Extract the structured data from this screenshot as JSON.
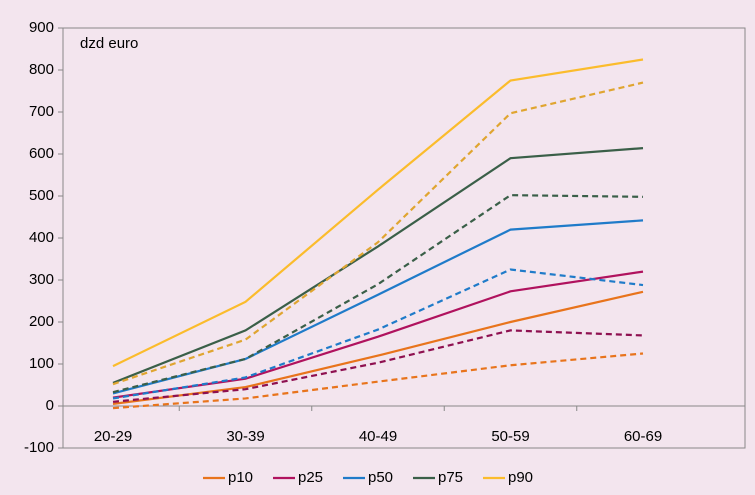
{
  "chart_data": {
    "type": "line",
    "annotation": "dzd euro",
    "categories": [
      "20-29",
      "30-39",
      "40-49",
      "50-59",
      "60-69"
    ],
    "ylim": [
      -100,
      900
    ],
    "yticks": [
      -100,
      0,
      100,
      200,
      300,
      400,
      500,
      600,
      700,
      800,
      900
    ],
    "legend": "bottom",
    "series": [
      {
        "name": "p10",
        "color": "#e8741c",
        "values": [
          5,
          45,
          120,
          200,
          272
        ]
      },
      {
        "color": "#e8741c",
        "dashed": true,
        "values": [
          -5,
          18,
          58,
          97,
          125
        ]
      },
      {
        "name": "p25",
        "color": "#b0125e",
        "values": [
          20,
          65,
          165,
          273,
          320
        ]
      },
      {
        "color": "#8e1050",
        "dashed": true,
        "values": [
          10,
          40,
          103,
          180,
          168
        ]
      },
      {
        "name": "p50",
        "color": "#1f7bc9",
        "values": [
          30,
          112,
          265,
          420,
          442
        ]
      },
      {
        "color": "#1f7bc9",
        "dashed": true,
        "values": [
          18,
          68,
          182,
          325,
          288
        ]
      },
      {
        "name": "p75",
        "color": "#3a5f48",
        "values": [
          55,
          180,
          380,
          590,
          614
        ]
      },
      {
        "color": "#3a5f48",
        "dashed": true,
        "values": [
          33,
          112,
          290,
          502,
          498
        ]
      },
      {
        "name": "p90",
        "color": "#fbbc2c",
        "values": [
          95,
          248,
          515,
          775,
          825
        ]
      },
      {
        "color": "#e0a530",
        "dashed": true,
        "values": [
          52,
          158,
          390,
          697,
          770
        ]
      }
    ]
  }
}
